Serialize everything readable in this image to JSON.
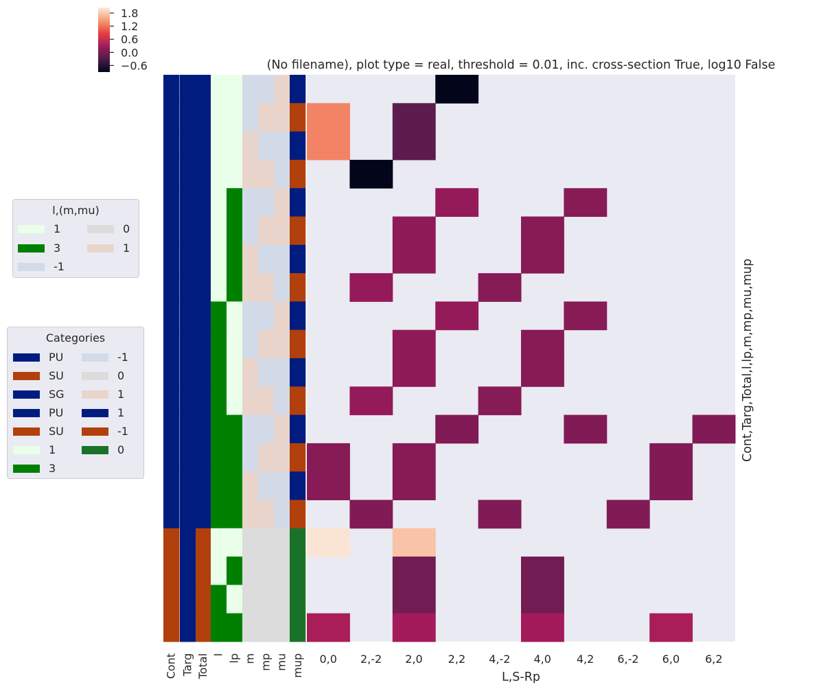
{
  "colors": {
    "background": "#eaeaf2",
    "PU": "#001c7f",
    "SU": "#b1400d",
    "SG": "#001c7f",
    "l1": "#e9ffe9",
    "l3": "#008000",
    "m_neg1": "#d3dbe8",
    "m_0": "#dcdcdc",
    "m_1": "#e9d5cc",
    "mup_1": "#001c7f",
    "mup_neg1": "#b1400d",
    "mup_0": "#1a7229"
  },
  "chart_data": {
    "type": "heatmap",
    "title": "(No filename), plot type = real, threshold = 0.01, inc. cross-section True, log10 False",
    "xlabel": "L,S-Rp",
    "ylabel": "Cont,Targ,Total,l,lp,m,mp,mu,mup",
    "categories": [
      "0,0",
      "2,-2",
      "2,0",
      "2,2",
      "4,-2",
      "4,0",
      "4,2",
      "6,-2",
      "6,0",
      "6,2"
    ],
    "annotation_columns": [
      "Cont",
      "Targ",
      "Total",
      "l",
      "lp",
      "m",
      "mp",
      "mu",
      "mup"
    ],
    "rows": [
      {
        "Cont": "PU",
        "Targ": "SG",
        "Total": "PU",
        "l": 1,
        "lp": 1,
        "m": -1,
        "mp": -1,
        "mu": 1,
        "mup": 1,
        "values": [
          null,
          null,
          null,
          -0.9,
          null,
          null,
          null,
          null,
          null,
          null
        ]
      },
      {
        "Cont": "PU",
        "Targ": "SG",
        "Total": "PU",
        "l": 1,
        "lp": 1,
        "m": -1,
        "mp": 1,
        "mu": 1,
        "mup": -1,
        "values": [
          1.3,
          null,
          -0.2,
          null,
          null,
          null,
          null,
          null,
          null,
          null
        ]
      },
      {
        "Cont": "PU",
        "Targ": "SG",
        "Total": "PU",
        "l": 1,
        "lp": 1,
        "m": 1,
        "mp": -1,
        "mu": -1,
        "mup": 1,
        "values": [
          1.3,
          null,
          -0.2,
          null,
          null,
          null,
          null,
          null,
          null,
          null
        ]
      },
      {
        "Cont": "PU",
        "Targ": "SG",
        "Total": "PU",
        "l": 1,
        "lp": 1,
        "m": 1,
        "mp": 1,
        "mu": -1,
        "mup": -1,
        "values": [
          null,
          -0.9,
          null,
          null,
          null,
          null,
          null,
          null,
          null,
          null
        ]
      },
      {
        "Cont": "PU",
        "Targ": "SG",
        "Total": "PU",
        "l": 1,
        "lp": 3,
        "m": -1,
        "mp": -1,
        "mu": 1,
        "mup": 1,
        "values": [
          null,
          null,
          null,
          0.2,
          null,
          null,
          0.1,
          null,
          null,
          null
        ]
      },
      {
        "Cont": "PU",
        "Targ": "SG",
        "Total": "PU",
        "l": 1,
        "lp": 3,
        "m": -1,
        "mp": 1,
        "mu": 1,
        "mup": -1,
        "values": [
          null,
          null,
          0.15,
          null,
          null,
          0.1,
          null,
          null,
          null,
          null
        ]
      },
      {
        "Cont": "PU",
        "Targ": "SG",
        "Total": "PU",
        "l": 1,
        "lp": 3,
        "m": 1,
        "mp": -1,
        "mu": -1,
        "mup": 1,
        "values": [
          null,
          null,
          0.15,
          null,
          null,
          0.1,
          null,
          null,
          null,
          null
        ]
      },
      {
        "Cont": "PU",
        "Targ": "SG",
        "Total": "PU",
        "l": 1,
        "lp": 3,
        "m": 1,
        "mp": 1,
        "mu": -1,
        "mup": -1,
        "values": [
          null,
          0.2,
          null,
          null,
          0.1,
          null,
          null,
          null,
          null,
          null
        ]
      },
      {
        "Cont": "PU",
        "Targ": "SG",
        "Total": "PU",
        "l": 3,
        "lp": 1,
        "m": -1,
        "mp": -1,
        "mu": 1,
        "mup": 1,
        "values": [
          null,
          null,
          null,
          0.2,
          null,
          null,
          0.1,
          null,
          null,
          null
        ]
      },
      {
        "Cont": "PU",
        "Targ": "SG",
        "Total": "PU",
        "l": 3,
        "lp": 1,
        "m": -1,
        "mp": 1,
        "mu": 1,
        "mup": -1,
        "values": [
          null,
          null,
          0.15,
          null,
          null,
          0.1,
          null,
          null,
          null,
          null
        ]
      },
      {
        "Cont": "PU",
        "Targ": "SG",
        "Total": "PU",
        "l": 3,
        "lp": 1,
        "m": 1,
        "mp": -1,
        "mu": -1,
        "mup": 1,
        "values": [
          null,
          null,
          0.15,
          null,
          null,
          0.1,
          null,
          null,
          null,
          null
        ]
      },
      {
        "Cont": "PU",
        "Targ": "SG",
        "Total": "PU",
        "l": 3,
        "lp": 1,
        "m": 1,
        "mp": 1,
        "mu": -1,
        "mup": -1,
        "values": [
          null,
          0.2,
          null,
          null,
          0.1,
          null,
          null,
          null,
          null,
          null
        ]
      },
      {
        "Cont": "PU",
        "Targ": "SG",
        "Total": "PU",
        "l": 3,
        "lp": 3,
        "m": -1,
        "mp": -1,
        "mu": 1,
        "mup": 1,
        "values": [
          null,
          null,
          null,
          0.05,
          null,
          null,
          0.05,
          null,
          null,
          0.05
        ]
      },
      {
        "Cont": "PU",
        "Targ": "SG",
        "Total": "PU",
        "l": 3,
        "lp": 3,
        "m": -1,
        "mp": 1,
        "mu": 1,
        "mup": -1,
        "values": [
          0.1,
          null,
          0.1,
          null,
          null,
          null,
          null,
          null,
          0.05,
          null
        ]
      },
      {
        "Cont": "PU",
        "Targ": "SG",
        "Total": "PU",
        "l": 3,
        "lp": 3,
        "m": 1,
        "mp": -1,
        "mu": -1,
        "mup": 1,
        "values": [
          0.1,
          null,
          0.1,
          null,
          null,
          null,
          null,
          null,
          0.05,
          null
        ]
      },
      {
        "Cont": "PU",
        "Targ": "SG",
        "Total": "PU",
        "l": 3,
        "lp": 3,
        "m": 1,
        "mp": 1,
        "mu": -1,
        "mup": -1,
        "values": [
          null,
          0.05,
          null,
          null,
          0.05,
          null,
          null,
          0.05,
          null,
          null
        ]
      },
      {
        "Cont": "SU",
        "Targ": "SG",
        "Total": "SU",
        "l": 1,
        "lp": 1,
        "m": 0,
        "mp": 0,
        "mu": 0,
        "mup": 0,
        "values": [
          2.0,
          null,
          1.75,
          null,
          null,
          null,
          null,
          null,
          null,
          null
        ]
      },
      {
        "Cont": "SU",
        "Targ": "SG",
        "Total": "SU",
        "l": 1,
        "lp": 3,
        "m": 0,
        "mp": 0,
        "mu": 0,
        "mup": 0,
        "values": [
          null,
          null,
          -0.05,
          null,
          null,
          -0.05,
          null,
          null,
          null,
          null
        ]
      },
      {
        "Cont": "SU",
        "Targ": "SG",
        "Total": "SU",
        "l": 3,
        "lp": 1,
        "m": 0,
        "mp": 0,
        "mu": 0,
        "mup": 0,
        "values": [
          null,
          null,
          -0.05,
          null,
          null,
          -0.05,
          null,
          null,
          null,
          null
        ]
      },
      {
        "Cont": "SU",
        "Targ": "SG",
        "Total": "SU",
        "l": 3,
        "lp": 3,
        "m": 0,
        "mp": 0,
        "mu": 0,
        "mup": 0,
        "values": [
          0.35,
          null,
          0.3,
          null,
          null,
          0.3,
          null,
          null,
          0.35,
          null
        ]
      }
    ],
    "colorbar": {
      "ticks": [
        1.8,
        1.2,
        0.6,
        0.0,
        -0.6
      ],
      "tick_labels": [
        "1.8",
        "1.2",
        "0.6",
        "0.0",
        "−0.6"
      ],
      "range": [
        -0.9,
        2.05
      ]
    },
    "legends": [
      {
        "title": "l,(m,mu)",
        "items": [
          {
            "label": "1",
            "color": "#e9ffe9"
          },
          {
            "label": "3",
            "color": "#008000"
          },
          {
            "label": "-1",
            "color": "#d3dbe8"
          },
          {
            "label": "0",
            "color": "#dcdcdc"
          },
          {
            "label": "1",
            "color": "#e9d5cc"
          }
        ]
      },
      {
        "title": "Categories",
        "items": [
          {
            "label": "PU",
            "color": "#001c7f"
          },
          {
            "label": "SU",
            "color": "#b1400d"
          },
          {
            "label": "SG",
            "color": "#001c7f"
          },
          {
            "label": "PU",
            "color": "#001c7f"
          },
          {
            "label": "SU",
            "color": "#b1400d"
          },
          {
            "label": "1",
            "color": "#e9ffe9"
          },
          {
            "label": "3",
            "color": "#008000"
          },
          {
            "label": "-1",
            "color": "#d3dbe8"
          },
          {
            "label": "0",
            "color": "#dcdcdc"
          },
          {
            "label": "1",
            "color": "#e9d5cc"
          },
          {
            "label": "1",
            "color": "#001c7f"
          },
          {
            "label": "-1",
            "color": "#b1400d"
          },
          {
            "label": "0",
            "color": "#1a7229"
          }
        ]
      }
    ]
  }
}
